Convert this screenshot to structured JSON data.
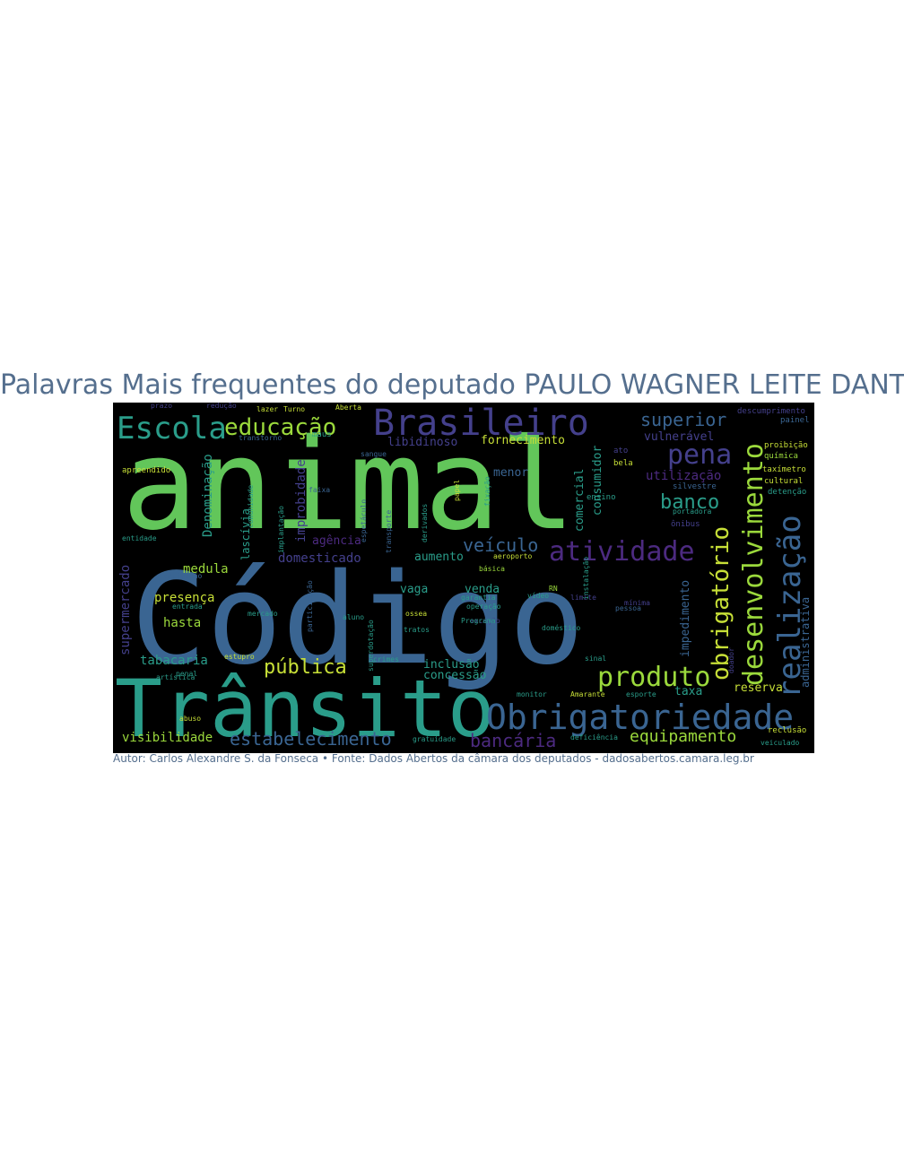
{
  "title": "Palavras Mais frequentes do deputado PAULO WAGNER LEITE DANTAS",
  "caption": "Autor: Carlos Alexandre S. da Fonseca • Fonte: Dados Abertos da câmara dos deputados - dadosabertos.camara.leg.br",
  "palette": {
    "green": "#62c65a",
    "blue": "#3a6592",
    "teal": "#2a9d8a",
    "purple": "#4c2a80",
    "indigo": "#44408c",
    "yellow": "#c7df37",
    "lime": "#9bd93c",
    "slate": "#35608d"
  },
  "words": [
    "animal",
    "Código",
    "Trânsito",
    "Obrigatoriedade",
    "Brasileiro",
    "Escola",
    "educação",
    "superior",
    "pena",
    "desenvolvimento",
    "realização",
    "atividade",
    "produto",
    "obrigatório",
    "banco",
    "pública",
    "estabelecimento",
    "bancária",
    "equipamento",
    "veículo",
    "medula",
    "presença",
    "hasta",
    "tabacaria",
    "visibilidade",
    "supermercado",
    "Denominação",
    "lascívia",
    "improbidade",
    "libidinoso",
    "fornecimento",
    "vulnerável",
    "utilização",
    "consumidor",
    "comercial",
    "menor",
    "agência",
    "domesticado",
    "aumento",
    "vaga",
    "venda",
    "inclusão",
    "concessão",
    "impedimento",
    "taxa",
    "reserva",
    "administrativa",
    "descumprimento",
    "painel",
    "proibição",
    "química",
    "taxímetro",
    "cultural",
    "detenção",
    "ensino",
    "ônibus",
    "apreendido",
    "estupro",
    "penal",
    "artística",
    "abuso",
    "gratuidade",
    "deficiência",
    "veiculado",
    "reclusão",
    "monitor",
    "Amarante",
    "esporte",
    "crimes",
    "tratos",
    "ossea",
    "exceção",
    "Programa",
    "doméstico",
    "operação",
    "garantia",
    "vídeo",
    "básica",
    "aeroporto",
    "mercado",
    "aluno",
    "participação",
    "entrada",
    "castração",
    "lazer",
    "Turno",
    "Aberta",
    "prazo",
    "redução",
    "transporte",
    "espetáculo",
    "sangue",
    "transtorno",
    "comunidade",
    "implantação",
    "faixa",
    "papel",
    "fixação",
    "derivados",
    "instalação",
    "mínima",
    "pessoa",
    "silvestre",
    "sinal",
    "superdotação",
    "portadora",
    "bela",
    "ato",
    "RN",
    "limite",
    "entidade",
    "maus",
    "doador",
    "cigarro"
  ]
}
